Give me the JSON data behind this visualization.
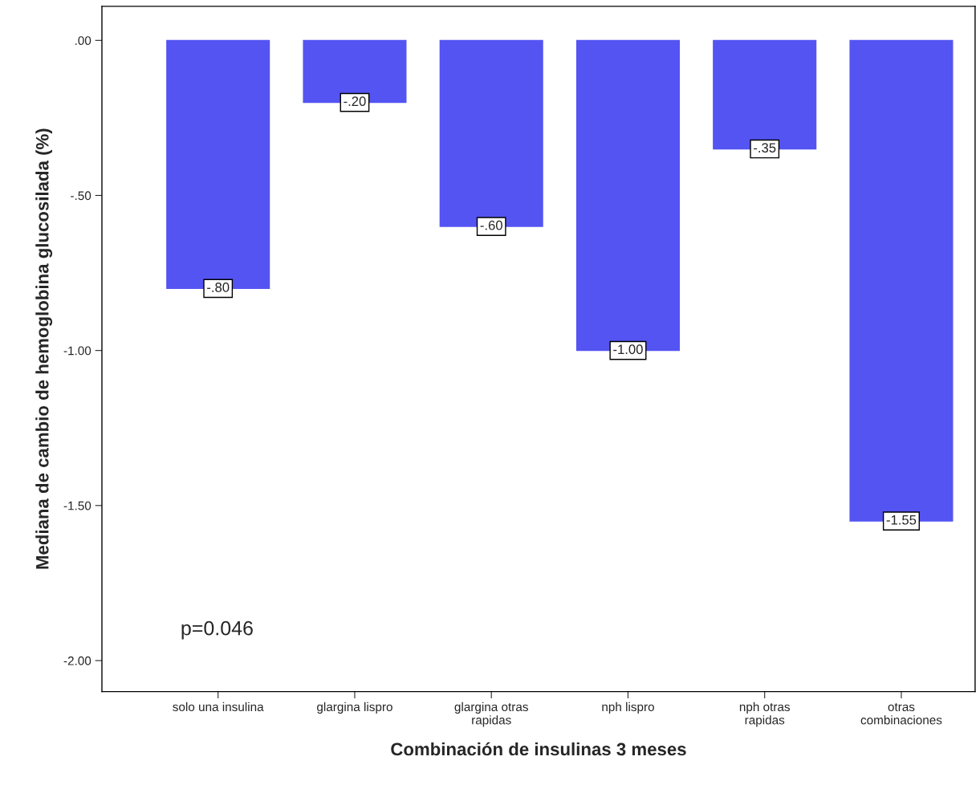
{
  "chart_data": {
    "type": "bar",
    "categories": [
      "solo una insulina",
      "glargina lispro",
      "glargina otras\nrapidas",
      "nph lispro",
      "nph otras\nrapidas",
      "otras\ncombinaciones"
    ],
    "values": [
      -0.8,
      -0.2,
      -0.6,
      -1.0,
      -0.35,
      -1.55
    ],
    "value_labels": [
      "-.80",
      "-.20",
      "-.60",
      "-1.00",
      "-.35",
      "-1.55"
    ],
    "color": "#5454f2",
    "xlabel": "Combinación de insulinas 3 meses",
    "ylabel": "Mediana de cambio de hemoglobina glucosilada (%)",
    "ylim": [
      -2.1,
      0.11
    ],
    "yticks": [
      {
        "value": 0,
        "label": ".00"
      },
      {
        "value": -0.5,
        "label": "-.50"
      },
      {
        "value": -1.0,
        "label": "-1.00"
      },
      {
        "value": -1.5,
        "label": "-1.50"
      },
      {
        "value": -2.0,
        "label": "-2.00"
      }
    ],
    "annotations": [
      "p=0.046"
    ],
    "grid": false,
    "legend": false
  }
}
